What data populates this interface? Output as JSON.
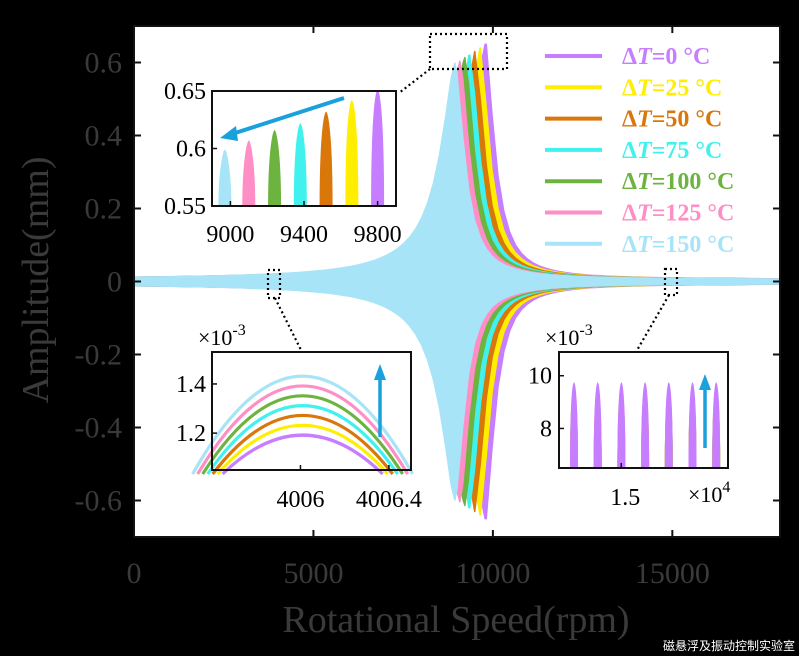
{
  "chart_data": {
    "type": "line",
    "xlabel": "Rotational Speed(rpm)",
    "ylabel": "Amplitude(mm)",
    "xlim": [
      0,
      18000
    ],
    "ylim": [
      -0.7,
      0.7
    ],
    "xticks": [
      "0",
      "5000",
      "10000",
      "15000"
    ],
    "yticks": [
      "0.6",
      "0.4",
      "0.2",
      "0",
      "-0.2",
      "-0.4",
      "-0.6"
    ],
    "legend_position": "top-right",
    "series": [
      {
        "name": "ΔT=0 °C",
        "color": "#c77dff",
        "peak_speed": 9780,
        "peak_amplitude": 0.65
      },
      {
        "name": "ΔT=25 °C",
        "color": "#ffee00",
        "peak_speed": 9640,
        "peak_amplitude": 0.64
      },
      {
        "name": "ΔT=50 °C",
        "color": "#d9770b",
        "peak_speed": 9500,
        "peak_amplitude": 0.63
      },
      {
        "name": "ΔT=75 °C",
        "color": "#41f1ee",
        "peak_speed": 9360,
        "peak_amplitude": 0.62
      },
      {
        "name": "ΔT=100 °C",
        "color": "#6db33f",
        "peak_speed": 9220,
        "peak_amplitude": 0.615
      },
      {
        "name": "ΔT=125 °C",
        "color": "#ff8ec6",
        "peak_speed": 9080,
        "peak_amplitude": 0.605
      },
      {
        "name": "ΔT=150 °C",
        "color": "#a8e4f7",
        "peak_speed": 8940,
        "peak_amplitude": 0.6
      }
    ],
    "insets": {
      "peak": {
        "xlim": [
          8900,
          9900
        ],
        "ylim": [
          0.55,
          0.65
        ],
        "xticks": [
          "9000",
          "9400",
          "9800"
        ],
        "yticks": [
          "0.65",
          "0.6",
          "0.55"
        ],
        "peaks_x": [
          8970,
          9100,
          9240,
          9380,
          9520,
          9660,
          9800
        ],
        "peaks_y": [
          0.599,
          0.607,
          0.616,
          0.622,
          0.632,
          0.642,
          0.651
        ]
      },
      "low": {
        "xlim": [
          4005.6,
          4006.5
        ],
        "ylim": [
          1.05,
          1.53
        ],
        "exponent": "×10",
        "exponent_power": "-3",
        "xticks": [
          "4006",
          "4006.4"
        ],
        "yticks": [
          "1.4",
          "1.2"
        ],
        "arc_peaks": [
          1.2,
          1.24,
          1.28,
          1.32,
          1.36,
          1.4,
          1.44
        ]
      },
      "high": {
        "xlim": [
          1.43,
          1.62
        ],
        "ylim": [
          6.5,
          10.9
        ],
        "exponent": "×10",
        "exponent_power": "-3",
        "x_exponent": "×10",
        "x_exponent_power": "4",
        "xticks": [
          "1.5"
        ],
        "yticks": [
          "10",
          "8"
        ],
        "oscillation_peaks": [
          9.1,
          9.2,
          9.3,
          9.4,
          9.5,
          9.6,
          9.75
        ]
      }
    }
  },
  "watermark": "磁悬浮及振动控制实验室"
}
